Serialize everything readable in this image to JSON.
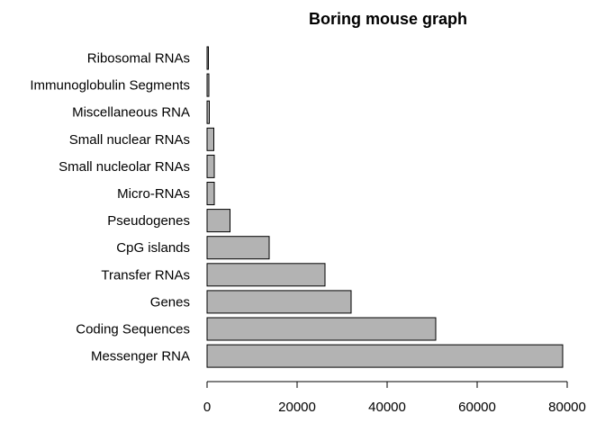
{
  "chart_data": {
    "type": "bar",
    "orientation": "horizontal",
    "title": "Boring mouse graph",
    "xlabel": "",
    "ylabel": "",
    "categories": [
      "Messenger RNA",
      "Coding Sequences",
      "Genes",
      "Transfer RNAs",
      "CpG islands",
      "Pseudogenes",
      "Micro-RNAs",
      "Small nucleolar RNAs",
      "Small nuclear RNAs",
      "Miscellaneous RNA",
      "Immunoglobulin Segments",
      "Ribosomal RNAs"
    ],
    "values": [
      79000,
      50800,
      32000,
      26200,
      13800,
      5100,
      1600,
      1600,
      1500,
      500,
      400,
      300
    ],
    "xlim": [
      0,
      80000
    ],
    "xticks": [
      0,
      20000,
      40000,
      60000,
      80000
    ],
    "tick_labels": [
      "0",
      "20000",
      "40000",
      "60000",
      "80000"
    ],
    "grid": false,
    "legend": "none",
    "colors": {
      "bar_fill": "#b3b3b3",
      "bar_stroke": "#000000",
      "background": "#ffffff"
    }
  }
}
